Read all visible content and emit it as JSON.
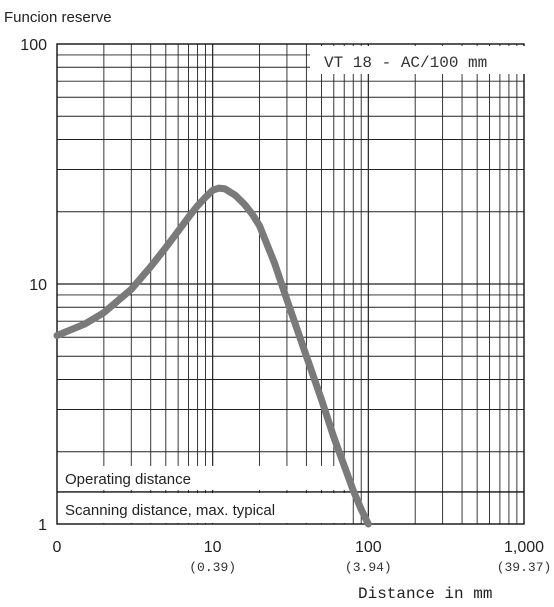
{
  "chart_data": {
    "type": "line",
    "ylabel": "Funcion reserve",
    "xlabel": "Distance in mm",
    "x_scale": "log",
    "y_scale": "log",
    "xlim": [
      1,
      1000
    ],
    "ylim": [
      1,
      100
    ],
    "x_ticks": [
      {
        "value": 1,
        "label": "0",
        "sublabel": ""
      },
      {
        "value": 10,
        "label": "10",
        "sublabel": "(0.39)"
      },
      {
        "value": 100,
        "label": "100",
        "sublabel": "(3.94)"
      },
      {
        "value": 1000,
        "label": "1,000",
        "sublabel": "(39.37)"
      }
    ],
    "y_ticks": [
      {
        "value": 1,
        "label": "1"
      },
      {
        "value": 10,
        "label": "10"
      },
      {
        "value": 100,
        "label": "100"
      }
    ],
    "grid": true,
    "model_label": "VT 18 - AC/100 mm",
    "threshold_line": {
      "y": 1.36
    },
    "threshold_labels": {
      "operating": "Operating distance",
      "scanning": "Scanning distance, max. typical"
    },
    "series": [
      {
        "color": "#7a7a7a",
        "x": [
          1,
          1.5,
          2,
          3,
          4,
          5,
          6,
          7,
          8,
          9,
          10,
          11,
          12,
          14,
          16,
          18,
          20,
          25,
          30,
          40,
          50,
          60,
          70,
          80,
          90,
          100
        ],
        "y": [
          6.1,
          6.8,
          7.6,
          9.5,
          11.8,
          14.2,
          16.6,
          19.0,
          21.2,
          23.0,
          24.6,
          25.1,
          24.9,
          23.4,
          21.5,
          19.5,
          17.5,
          12.2,
          8.6,
          5.0,
          3.3,
          2.3,
          1.75,
          1.38,
          1.15,
          1.0
        ]
      }
    ]
  }
}
